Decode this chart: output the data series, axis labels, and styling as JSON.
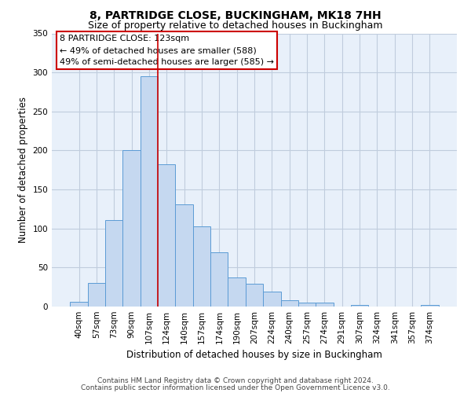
{
  "title": "8, PARTRIDGE CLOSE, BUCKINGHAM, MK18 7HH",
  "subtitle": "Size of property relative to detached houses in Buckingham",
  "xlabel": "Distribution of detached houses by size in Buckingham",
  "ylabel": "Number of detached properties",
  "categories": [
    "40sqm",
    "57sqm",
    "73sqm",
    "90sqm",
    "107sqm",
    "124sqm",
    "140sqm",
    "157sqm",
    "174sqm",
    "190sqm",
    "207sqm",
    "224sqm",
    "240sqm",
    "257sqm",
    "274sqm",
    "291sqm",
    "307sqm",
    "324sqm",
    "341sqm",
    "357sqm",
    "374sqm"
  ],
  "values": [
    6,
    30,
    111,
    200,
    295,
    182,
    131,
    103,
    69,
    37,
    29,
    19,
    8,
    5,
    5,
    0,
    2,
    0,
    0,
    0,
    2
  ],
  "bar_color": "#c5d8f0",
  "bar_edge_color": "#5b9bd5",
  "vline_x_idx": 4,
  "vline_color": "#cc0000",
  "annotation_box_text": "8 PARTRIDGE CLOSE: 123sqm\n← 49% of detached houses are smaller (588)\n49% of semi-detached houses are larger (585) →",
  "annotation_box_color": "#cc0000",
  "ylim": [
    0,
    350
  ],
  "yticks": [
    0,
    50,
    100,
    150,
    200,
    250,
    300,
    350
  ],
  "footer_line1": "Contains HM Land Registry data © Crown copyright and database right 2024.",
  "footer_line2": "Contains public sector information licensed under the Open Government Licence v3.0.",
  "background_color": "#ffffff",
  "plot_bg_color": "#e8f0fa",
  "grid_color": "#c0ccdd",
  "title_fontsize": 10,
  "subtitle_fontsize": 9,
  "axis_label_fontsize": 8.5,
  "tick_fontsize": 7.5,
  "footer_fontsize": 6.5,
  "annot_fontsize": 8
}
